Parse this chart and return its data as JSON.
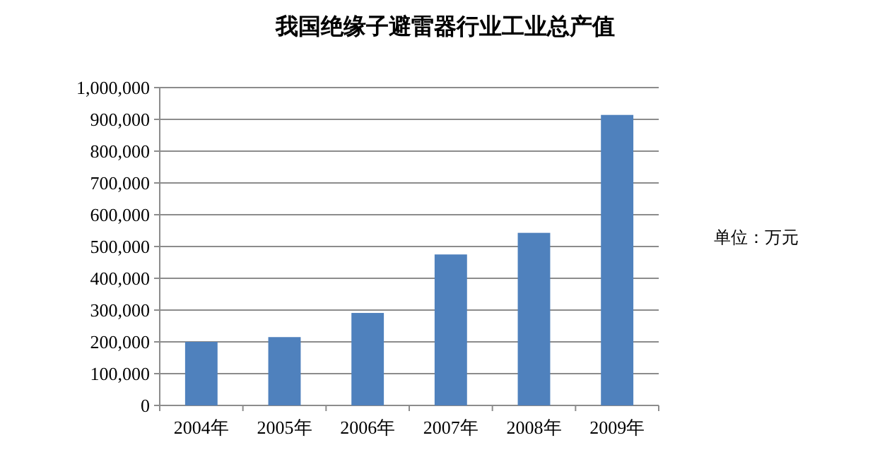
{
  "chart_data": {
    "type": "bar",
    "title": "我国绝缘子避雷器行业工业总产值",
    "categories": [
      "2004年",
      "2005年",
      "2006年",
      "2007年",
      "2008年",
      "2009年"
    ],
    "series": [
      {
        "color": "#4f81bd",
        "values": [
          200000,
          215000,
          291000,
          475000,
          543000,
          914000
        ]
      }
    ],
    "ylim": [
      0,
      1000000
    ],
    "yticks": [
      {
        "value": 0,
        "label": "0"
      },
      {
        "value": 100000,
        "label": "100,000"
      },
      {
        "value": 200000,
        "label": "200,000"
      },
      {
        "value": 300000,
        "label": "300,000"
      },
      {
        "value": 400000,
        "label": "400,000"
      },
      {
        "value": 500000,
        "label": "500,000"
      },
      {
        "value": 600000,
        "label": "600,000"
      },
      {
        "value": 700000,
        "label": "700,000"
      },
      {
        "value": 800000,
        "label": "800,000"
      },
      {
        "value": 900000,
        "label": "900,000"
      },
      {
        "value": 1000000,
        "label": "1,000,000"
      }
    ],
    "grid": "y",
    "annotations": [
      "单位：万元"
    ]
  }
}
